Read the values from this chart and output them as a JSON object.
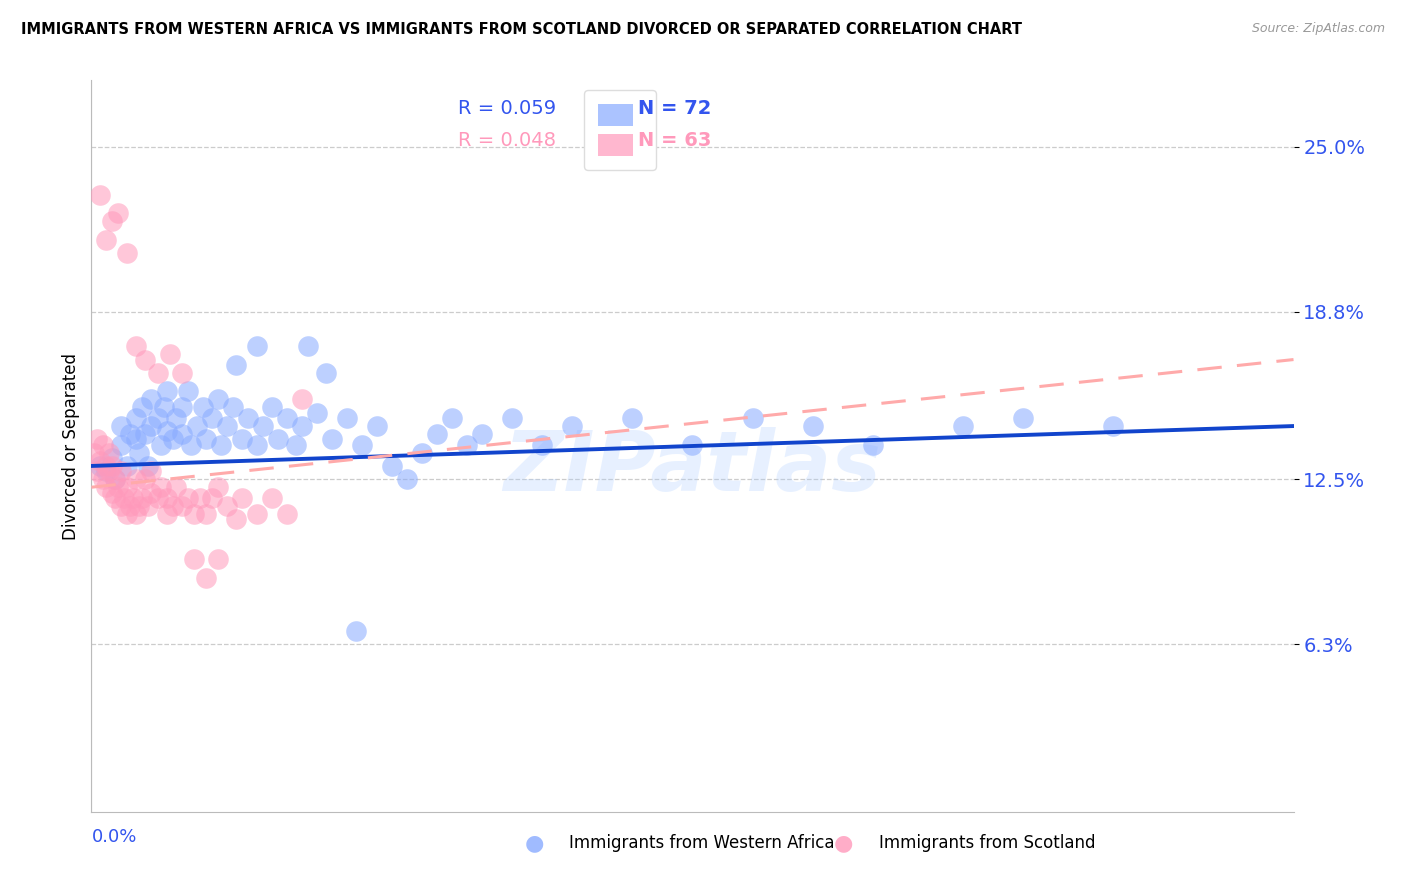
{
  "title": "IMMIGRANTS FROM WESTERN AFRICA VS IMMIGRANTS FROM SCOTLAND DIVORCED OR SEPARATED CORRELATION CHART",
  "source": "Source: ZipAtlas.com",
  "ylabel": "Divorced or Separated",
  "ytick_labels": [
    "25.0%",
    "18.8%",
    "12.5%",
    "6.3%"
  ],
  "ytick_values": [
    0.25,
    0.188,
    0.125,
    0.063
  ],
  "xlim": [
    0.0,
    0.4
  ],
  "ylim": [
    0.0,
    0.275
  ],
  "blue_scatter_x": [
    0.003,
    0.005,
    0.007,
    0.008,
    0.01,
    0.01,
    0.012,
    0.013,
    0.015,
    0.015,
    0.016,
    0.017,
    0.018,
    0.019,
    0.02,
    0.02,
    0.022,
    0.023,
    0.024,
    0.025,
    0.025,
    0.027,
    0.028,
    0.03,
    0.03,
    0.032,
    0.033,
    0.035,
    0.037,
    0.038,
    0.04,
    0.042,
    0.043,
    0.045,
    0.047,
    0.05,
    0.052,
    0.055,
    0.057,
    0.06,
    0.062,
    0.065,
    0.068,
    0.07,
    0.075,
    0.08,
    0.085,
    0.09,
    0.095,
    0.1,
    0.105,
    0.11,
    0.115,
    0.12,
    0.125,
    0.13,
    0.14,
    0.15,
    0.16,
    0.18,
    0.2,
    0.22,
    0.24,
    0.26,
    0.29,
    0.31,
    0.34,
    0.048,
    0.055,
    0.072,
    0.078,
    0.088
  ],
  "blue_scatter_y": [
    0.13,
    0.128,
    0.133,
    0.125,
    0.138,
    0.145,
    0.13,
    0.142,
    0.148,
    0.14,
    0.135,
    0.152,
    0.142,
    0.13,
    0.155,
    0.145,
    0.148,
    0.138,
    0.152,
    0.143,
    0.158,
    0.14,
    0.148,
    0.152,
    0.142,
    0.158,
    0.138,
    0.145,
    0.152,
    0.14,
    0.148,
    0.155,
    0.138,
    0.145,
    0.152,
    0.14,
    0.148,
    0.138,
    0.145,
    0.152,
    0.14,
    0.148,
    0.138,
    0.145,
    0.15,
    0.14,
    0.148,
    0.138,
    0.145,
    0.13,
    0.125,
    0.135,
    0.142,
    0.148,
    0.138,
    0.142,
    0.148,
    0.138,
    0.145,
    0.148,
    0.138,
    0.148,
    0.145,
    0.138,
    0.145,
    0.148,
    0.145,
    0.168,
    0.175,
    0.175,
    0.165,
    0.068
  ],
  "pink_scatter_x": [
    0.001,
    0.002,
    0.002,
    0.003,
    0.004,
    0.004,
    0.005,
    0.005,
    0.006,
    0.006,
    0.007,
    0.007,
    0.008,
    0.008,
    0.009,
    0.01,
    0.01,
    0.011,
    0.012,
    0.012,
    0.013,
    0.014,
    0.015,
    0.015,
    0.016,
    0.017,
    0.018,
    0.019,
    0.02,
    0.02,
    0.022,
    0.023,
    0.025,
    0.025,
    0.027,
    0.028,
    0.03,
    0.032,
    0.034,
    0.036,
    0.038,
    0.04,
    0.042,
    0.045,
    0.048,
    0.05,
    0.055,
    0.06,
    0.065,
    0.07,
    0.003,
    0.005,
    0.007,
    0.009,
    0.012,
    0.015,
    0.018,
    0.022,
    0.026,
    0.03,
    0.034,
    0.038,
    0.042
  ],
  "pink_scatter_y": [
    0.135,
    0.128,
    0.14,
    0.132,
    0.125,
    0.138,
    0.122,
    0.13,
    0.128,
    0.135,
    0.12,
    0.13,
    0.118,
    0.125,
    0.122,
    0.128,
    0.115,
    0.118,
    0.112,
    0.122,
    0.115,
    0.118,
    0.112,
    0.125,
    0.115,
    0.118,
    0.125,
    0.115,
    0.12,
    0.128,
    0.118,
    0.122,
    0.112,
    0.118,
    0.115,
    0.122,
    0.115,
    0.118,
    0.112,
    0.118,
    0.112,
    0.118,
    0.122,
    0.115,
    0.11,
    0.118,
    0.112,
    0.118,
    0.112,
    0.155,
    0.232,
    0.215,
    0.222,
    0.225,
    0.21,
    0.175,
    0.17,
    0.165,
    0.172,
    0.165,
    0.095,
    0.088,
    0.095
  ],
  "blue_line_x": [
    0.0,
    0.4
  ],
  "blue_line_y": [
    0.13,
    0.145
  ],
  "pink_line_x": [
    0.0,
    0.4
  ],
  "pink_line_y": [
    0.122,
    0.17
  ],
  "blue_color": "#88aaff",
  "pink_color": "#ff99bb",
  "blue_line_color": "#1144cc",
  "pink_line_color": "#ffaaaa",
  "axis_label_color": "#3355ee",
  "watermark": "ZIPatlas",
  "legend_blue_label": "R = 0.059",
  "legend_blue_n": "N = 72",
  "legend_pink_label": "R = 0.048",
  "legend_pink_n": "N = 63"
}
